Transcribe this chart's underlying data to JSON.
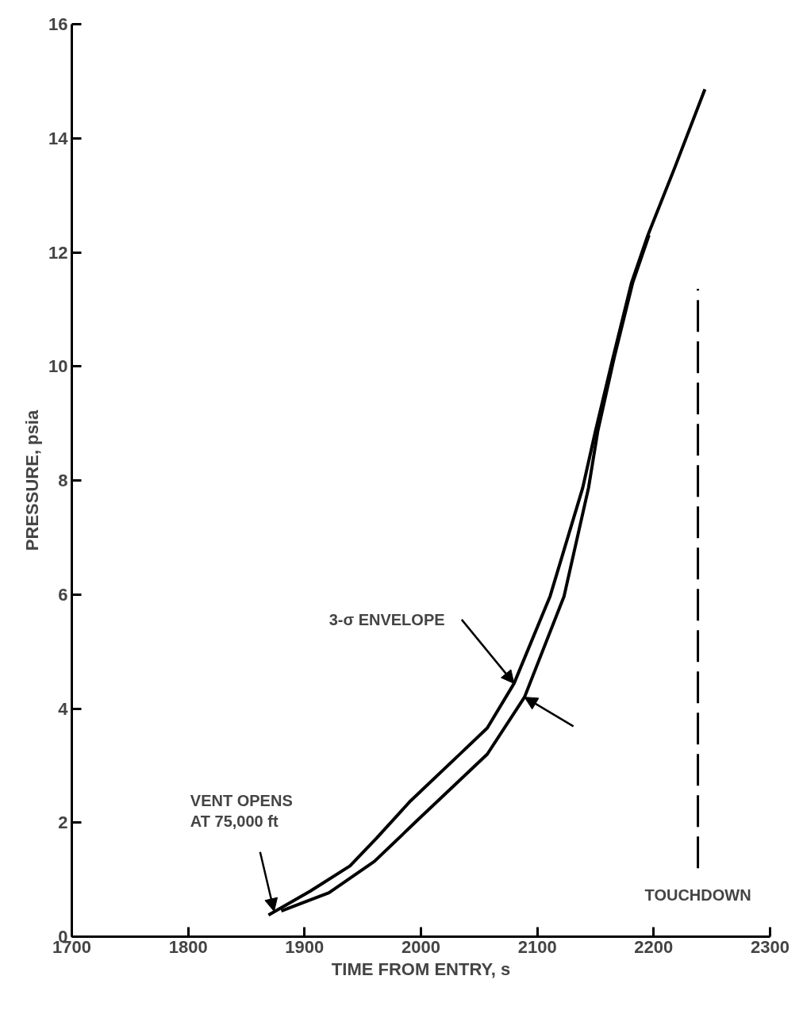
{
  "chart_data": {
    "type": "line",
    "xlabel": "TIME FROM ENTRY, s",
    "ylabel": "PRESSURE, psia",
    "xlim": [
      1700,
      2300
    ],
    "xticks": [
      1700,
      1800,
      1900,
      2000,
      2100,
      2200,
      2300
    ],
    "ylim": [
      0,
      16
    ],
    "yticks": [
      0,
      2,
      4,
      6,
      8,
      10,
      12,
      14,
      16
    ],
    "grid": false,
    "line_style": "solid",
    "series": [
      {
        "color": "#000000",
        "x": [
          1869,
          1905,
          1939,
          1962,
          1991,
          2036,
          2057,
          2080,
          2111,
          2139,
          2150,
          2165,
          2181,
          2195,
          2218,
          2244
        ],
        "values": [
          0.38,
          0.8,
          1.24,
          1.73,
          2.38,
          3.25,
          3.66,
          4.44,
          5.97,
          7.87,
          8.87,
          10.15,
          11.47,
          12.3,
          13.48,
          14.86
        ]
      },
      {
        "color": "#000000",
        "x": [
          1880,
          1921,
          1960,
          2000,
          2057,
          2089,
          2123,
          2144,
          2152,
          2166,
          2182,
          2196
        ],
        "values": [
          0.45,
          0.77,
          1.32,
          2.1,
          3.2,
          4.2,
          5.97,
          7.87,
          8.87,
          10.15,
          11.47,
          12.3
        ]
      }
    ],
    "ref_lines": [
      {
        "axis": "x",
        "value": 2238,
        "label": "TOUCHDOWN",
        "color": "#000000",
        "line_style": "dashed"
      }
    ],
    "annotations": [
      {
        "text": "3-σ ENVELOPE",
        "x": 2080,
        "y": 4.44
      },
      "VENT OPENS\nAT 75,000 ft"
    ]
  }
}
